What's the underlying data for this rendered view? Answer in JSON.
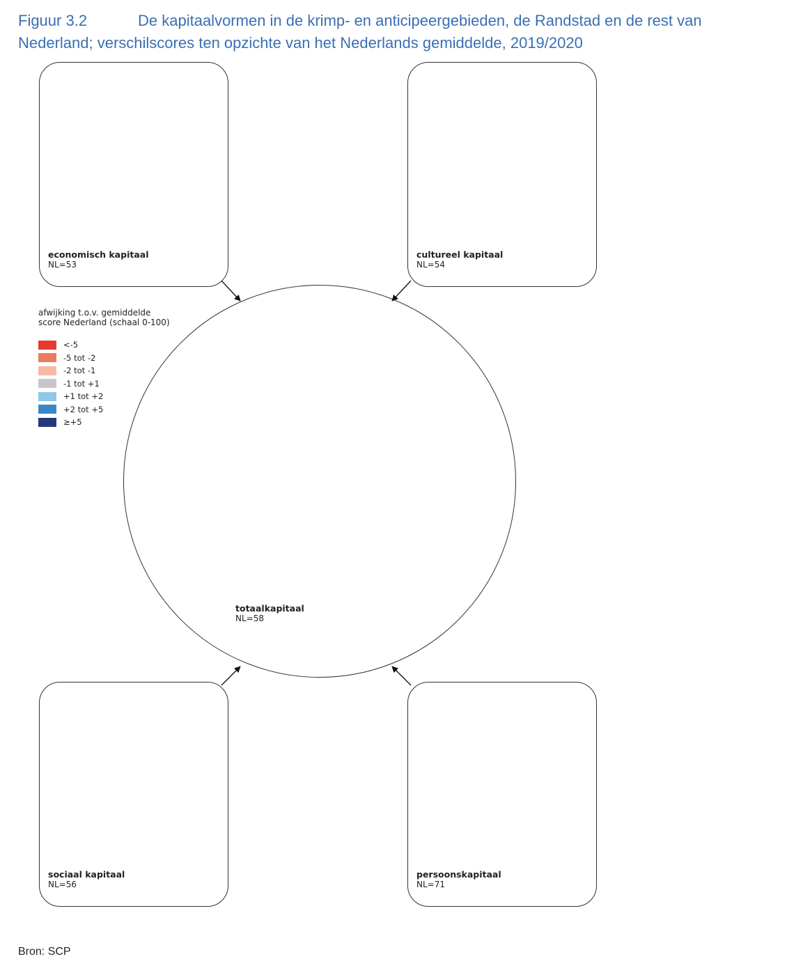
{
  "figure": {
    "number": "Figuur 3.2",
    "title_line1": "De kapitaalvormen in de krimp- en anticipeergebieden, de Randstad en de rest van",
    "title_line2": "Nederland; verschilscores ten opzichte van het Nederlands gemiddelde, 2019/2020"
  },
  "legend": {
    "title_line1": "afwijking t.o.v. gemiddelde",
    "title_line2": "score Nederland (schaal 0-100)",
    "items": [
      {
        "label": "<-5",
        "color": "#e53a2f"
      },
      {
        "label": "-5 tot -2",
        "color": "#ed7b5e"
      },
      {
        "label": "-2 tot -1",
        "color": "#f6b9a4"
      },
      {
        "label": "-1 tot +1",
        "color": "#c6c6c8"
      },
      {
        "label": "+1 tot +2",
        "color": "#8fc8e8"
      },
      {
        "label": "+2 tot +5",
        "color": "#3b86c6"
      },
      {
        "label": "≥+5",
        "color": "#233a7a"
      }
    ]
  },
  "maps": {
    "economisch": {
      "label": "economisch kapitaal",
      "nl": "NL=53",
      "colors": {
        "base": "#8fc8e8",
        "northwest": "#c6c6c8",
        "coast": "#c6c6c8",
        "wadden": "#f6b9a4",
        "noord_west": "#f6b9a4",
        "noord_mid": "#f6b9a4",
        "groningen": "#ed7b5e",
        "oost_groningen": "#ed7b5e",
        "drenthe_zuid": "#f6b9a4",
        "twente": "#ed7b5e",
        "zeeland": "#ed7b5e",
        "zeeland_noord": "#f6b9a4",
        "zeeland_mid": "#8fc8e8",
        "limburg": "#f6b9a4",
        "zuid_limburg": "#ed7b5e",
        "rijnmond": "#8fc8e8",
        "den_haag": "#8fc8e8"
      }
    },
    "cultureel": {
      "label": "cultureel kapitaal",
      "nl": "NL=54",
      "colors": {
        "base": "#c6c6c8",
        "northwest": "#8fc8e8",
        "coast": "#8fc8e8",
        "wadden": "#ed7b5e",
        "noord_west": "#ed7b5e",
        "noord_mid": "#ed7b5e",
        "groningen": "#ed7b5e",
        "oost_groningen": "#ed7b5e",
        "drenthe_zuid": "#ed7b5e",
        "twente": "#ed7b5e",
        "zeeland": "#ed7b5e",
        "zeeland_noord": "#ed7b5e",
        "zeeland_mid": "#c6c6c8",
        "limburg": "#ed7b5e",
        "zuid_limburg": "#ed7b5e",
        "rijnmond": "#ed7b5e",
        "den_haag": "#8fc8e8"
      }
    },
    "totaal": {
      "label": "totaalkapitaal",
      "nl": "NL=58",
      "colors": {
        "base": "#c6c6c8",
        "northwest": "#c6c6c8",
        "coast": "#c6c6c8",
        "wadden": "#f6b9a4",
        "noord_west": "#f6b9a4",
        "noord_mid": "#f6b9a4",
        "groningen": "#ed7b5e",
        "oost_groningen": "#ed7b5e",
        "drenthe_zuid": "#f6b9a4",
        "twente": "#ed7b5e",
        "zeeland": "#ed7b5e",
        "zeeland_noord": "#f6b9a4",
        "zeeland_mid": "#c6c6c8",
        "limburg": "#f6b9a4",
        "zuid_limburg": "#ed7b5e",
        "rijnmond": "#f6b9a4",
        "den_haag": "#c6c6c8"
      }
    },
    "sociaal": {
      "label": "sociaal kapitaal",
      "nl": "NL=56",
      "colors": {
        "base": "#c6c6c8",
        "northwest": "#c6c6c8",
        "coast": "#c6c6c8",
        "wadden": "#ed7b5e",
        "noord_west": "#ed7b5e",
        "noord_mid": "#ed7b5e",
        "groningen": "#ed7b5e",
        "oost_groningen": "#ed7b5e",
        "drenthe_zuid": "#ed7b5e",
        "twente": "#ed7b5e",
        "zeeland": "#ed7b5e",
        "zeeland_noord": "#ed7b5e",
        "zeeland_mid": "#c6c6c8",
        "limburg": "#ed7b5e",
        "zuid_limburg": "#ed7b5e",
        "rijnmond": "#ed7b5e",
        "den_haag": "#c6c6c8"
      }
    },
    "persoons": {
      "label": "persoonskapitaal",
      "nl": "NL=71",
      "colors": {
        "base": "#c6c6c8",
        "northwest": "#c6c6c8",
        "coast": "#c6c6c8",
        "wadden": "#c6c6c8",
        "noord_west": "#c6c6c8",
        "noord_mid": "#f6b9a4",
        "groningen": "#f6b9a4",
        "oost_groningen": "#f6b9a4",
        "drenthe_zuid": "#c6c6c8",
        "twente": "#f6b9a4",
        "zeeland": "#f6b9a4",
        "zeeland_noord": "#c6c6c8",
        "zeeland_mid": "#c6c6c8",
        "limburg": "#c6c6c8",
        "zuid_limburg": "#f6b9a4",
        "rijnmond": "#c6c6c8",
        "den_haag": "#c6c6c8"
      }
    }
  },
  "source": "Bron: SCP"
}
